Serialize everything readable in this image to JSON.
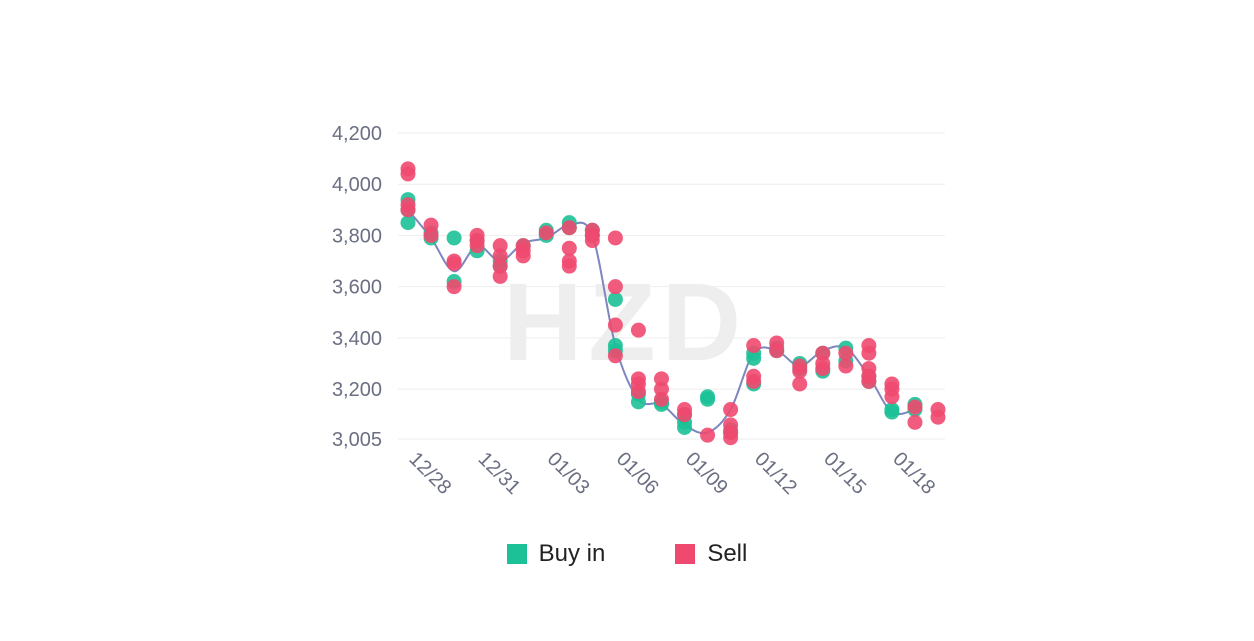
{
  "chart_data": {
    "type": "scatter",
    "watermark": "HZD",
    "y_ticks": [
      3005,
      3200,
      3400,
      3600,
      3800,
      4000,
      4200
    ],
    "y_tick_labels": [
      "3,005",
      "3,200",
      "3,400",
      "3,600",
      "3,800",
      "4,000",
      "4,200"
    ],
    "ylim": [
      3005,
      4200
    ],
    "x_tick_labels": [
      "12/28",
      "12/31",
      "01/03",
      "01/06",
      "01/09",
      "01/12",
      "01/15",
      "01/18"
    ],
    "x_tick_positions": [
      0,
      3,
      6,
      9,
      12,
      15,
      18,
      21
    ],
    "xlim": [
      0,
      23
    ],
    "grid": true,
    "legend_placement": "bottom",
    "colors": {
      "buy": "#1cc197",
      "sell": "#f0496f",
      "line": "#7e86bf"
    },
    "trend_line": [
      [
        0,
        3900
      ],
      [
        1,
        3790
      ],
      [
        2,
        3660
      ],
      [
        3,
        3760
      ],
      [
        4,
        3700
      ],
      [
        5,
        3770
      ],
      [
        6,
        3790
      ],
      [
        7,
        3840
      ],
      [
        8,
        3800
      ],
      [
        9,
        3370
      ],
      [
        10,
        3160
      ],
      [
        11,
        3140
      ],
      [
        12,
        3060
      ],
      [
        13,
        3030
      ],
      [
        14,
        3120
      ],
      [
        15,
        3340
      ],
      [
        16,
        3350
      ],
      [
        17,
        3290
      ],
      [
        18,
        3350
      ],
      [
        19,
        3360
      ],
      [
        20,
        3250
      ],
      [
        21,
        3110
      ],
      [
        22,
        3120
      ]
    ],
    "series": [
      {
        "name": "Buy in",
        "points": [
          [
            0,
            3850
          ],
          [
            0,
            3900
          ],
          [
            0,
            3940
          ],
          [
            1,
            3790
          ],
          [
            1,
            3810
          ],
          [
            2,
            3790
          ],
          [
            2,
            3620
          ],
          [
            3,
            3740
          ],
          [
            3,
            3780
          ],
          [
            4,
            3680
          ],
          [
            4,
            3700
          ],
          [
            5,
            3760
          ],
          [
            6,
            3800
          ],
          [
            6,
            3820
          ],
          [
            7,
            3850
          ],
          [
            7,
            3830
          ],
          [
            8,
            3820
          ],
          [
            8,
            3800
          ],
          [
            9,
            3550
          ],
          [
            9,
            3370
          ],
          [
            9,
            3350
          ],
          [
            10,
            3150
          ],
          [
            10,
            3180
          ],
          [
            11,
            3150
          ],
          [
            11,
            3140
          ],
          [
            12,
            3050
          ],
          [
            12,
            3070
          ],
          [
            12,
            3100
          ],
          [
            13,
            3170
          ],
          [
            13,
            3160
          ],
          [
            14,
            3030
          ],
          [
            14,
            3040
          ],
          [
            15,
            3220
          ],
          [
            15,
            3320
          ],
          [
            15,
            3340
          ],
          [
            16,
            3350
          ],
          [
            16,
            3360
          ],
          [
            17,
            3300
          ],
          [
            17,
            3280
          ],
          [
            18,
            3270
          ],
          [
            18,
            3340
          ],
          [
            19,
            3360
          ],
          [
            19,
            3310
          ],
          [
            20,
            3250
          ],
          [
            20,
            3230
          ],
          [
            21,
            3110
          ],
          [
            21,
            3120
          ],
          [
            22,
            3140
          ],
          [
            22,
            3120
          ]
        ]
      },
      {
        "name": "Sell",
        "points": [
          [
            0,
            4060
          ],
          [
            0,
            4040
          ],
          [
            0,
            3920
          ],
          [
            0,
            3900
          ],
          [
            1,
            3840
          ],
          [
            1,
            3800
          ],
          [
            2,
            3690
          ],
          [
            2,
            3700
          ],
          [
            2,
            3600
          ],
          [
            3,
            3800
          ],
          [
            3,
            3780
          ],
          [
            3,
            3760
          ],
          [
            4,
            3760
          ],
          [
            4,
            3720
          ],
          [
            4,
            3680
          ],
          [
            4,
            3640
          ],
          [
            5,
            3760
          ],
          [
            5,
            3740
          ],
          [
            5,
            3720
          ],
          [
            6,
            3810
          ],
          [
            7,
            3830
          ],
          [
            7,
            3750
          ],
          [
            7,
            3700
          ],
          [
            7,
            3680
          ],
          [
            8,
            3820
          ],
          [
            8,
            3780
          ],
          [
            8,
            3800
          ],
          [
            9,
            3790
          ],
          [
            9,
            3600
          ],
          [
            9,
            3450
          ],
          [
            9,
            3330
          ],
          [
            10,
            3430
          ],
          [
            10,
            3240
          ],
          [
            10,
            3220
          ],
          [
            10,
            3190
          ],
          [
            11,
            3240
          ],
          [
            11,
            3200
          ],
          [
            11,
            3160
          ],
          [
            12,
            3120
          ],
          [
            12,
            3100
          ],
          [
            13,
            3020
          ],
          [
            14,
            3120
          ],
          [
            14,
            3060
          ],
          [
            14,
            3030
          ],
          [
            14,
            3010
          ],
          [
            15,
            3370
          ],
          [
            15,
            3250
          ],
          [
            15,
            3230
          ],
          [
            16,
            3380
          ],
          [
            16,
            3350
          ],
          [
            17,
            3290
          ],
          [
            17,
            3270
          ],
          [
            17,
            3220
          ],
          [
            18,
            3340
          ],
          [
            18,
            3300
          ],
          [
            18,
            3280
          ],
          [
            19,
            3340
          ],
          [
            19,
            3290
          ],
          [
            20,
            3370
          ],
          [
            20,
            3340
          ],
          [
            20,
            3280
          ],
          [
            20,
            3250
          ],
          [
            20,
            3230
          ],
          [
            21,
            3220
          ],
          [
            21,
            3200
          ],
          [
            21,
            3170
          ],
          [
            22,
            3130
          ],
          [
            22,
            3070
          ],
          [
            23,
            3120
          ],
          [
            23,
            3090
          ]
        ]
      }
    ],
    "legend": [
      "Buy in",
      "Sell"
    ]
  }
}
